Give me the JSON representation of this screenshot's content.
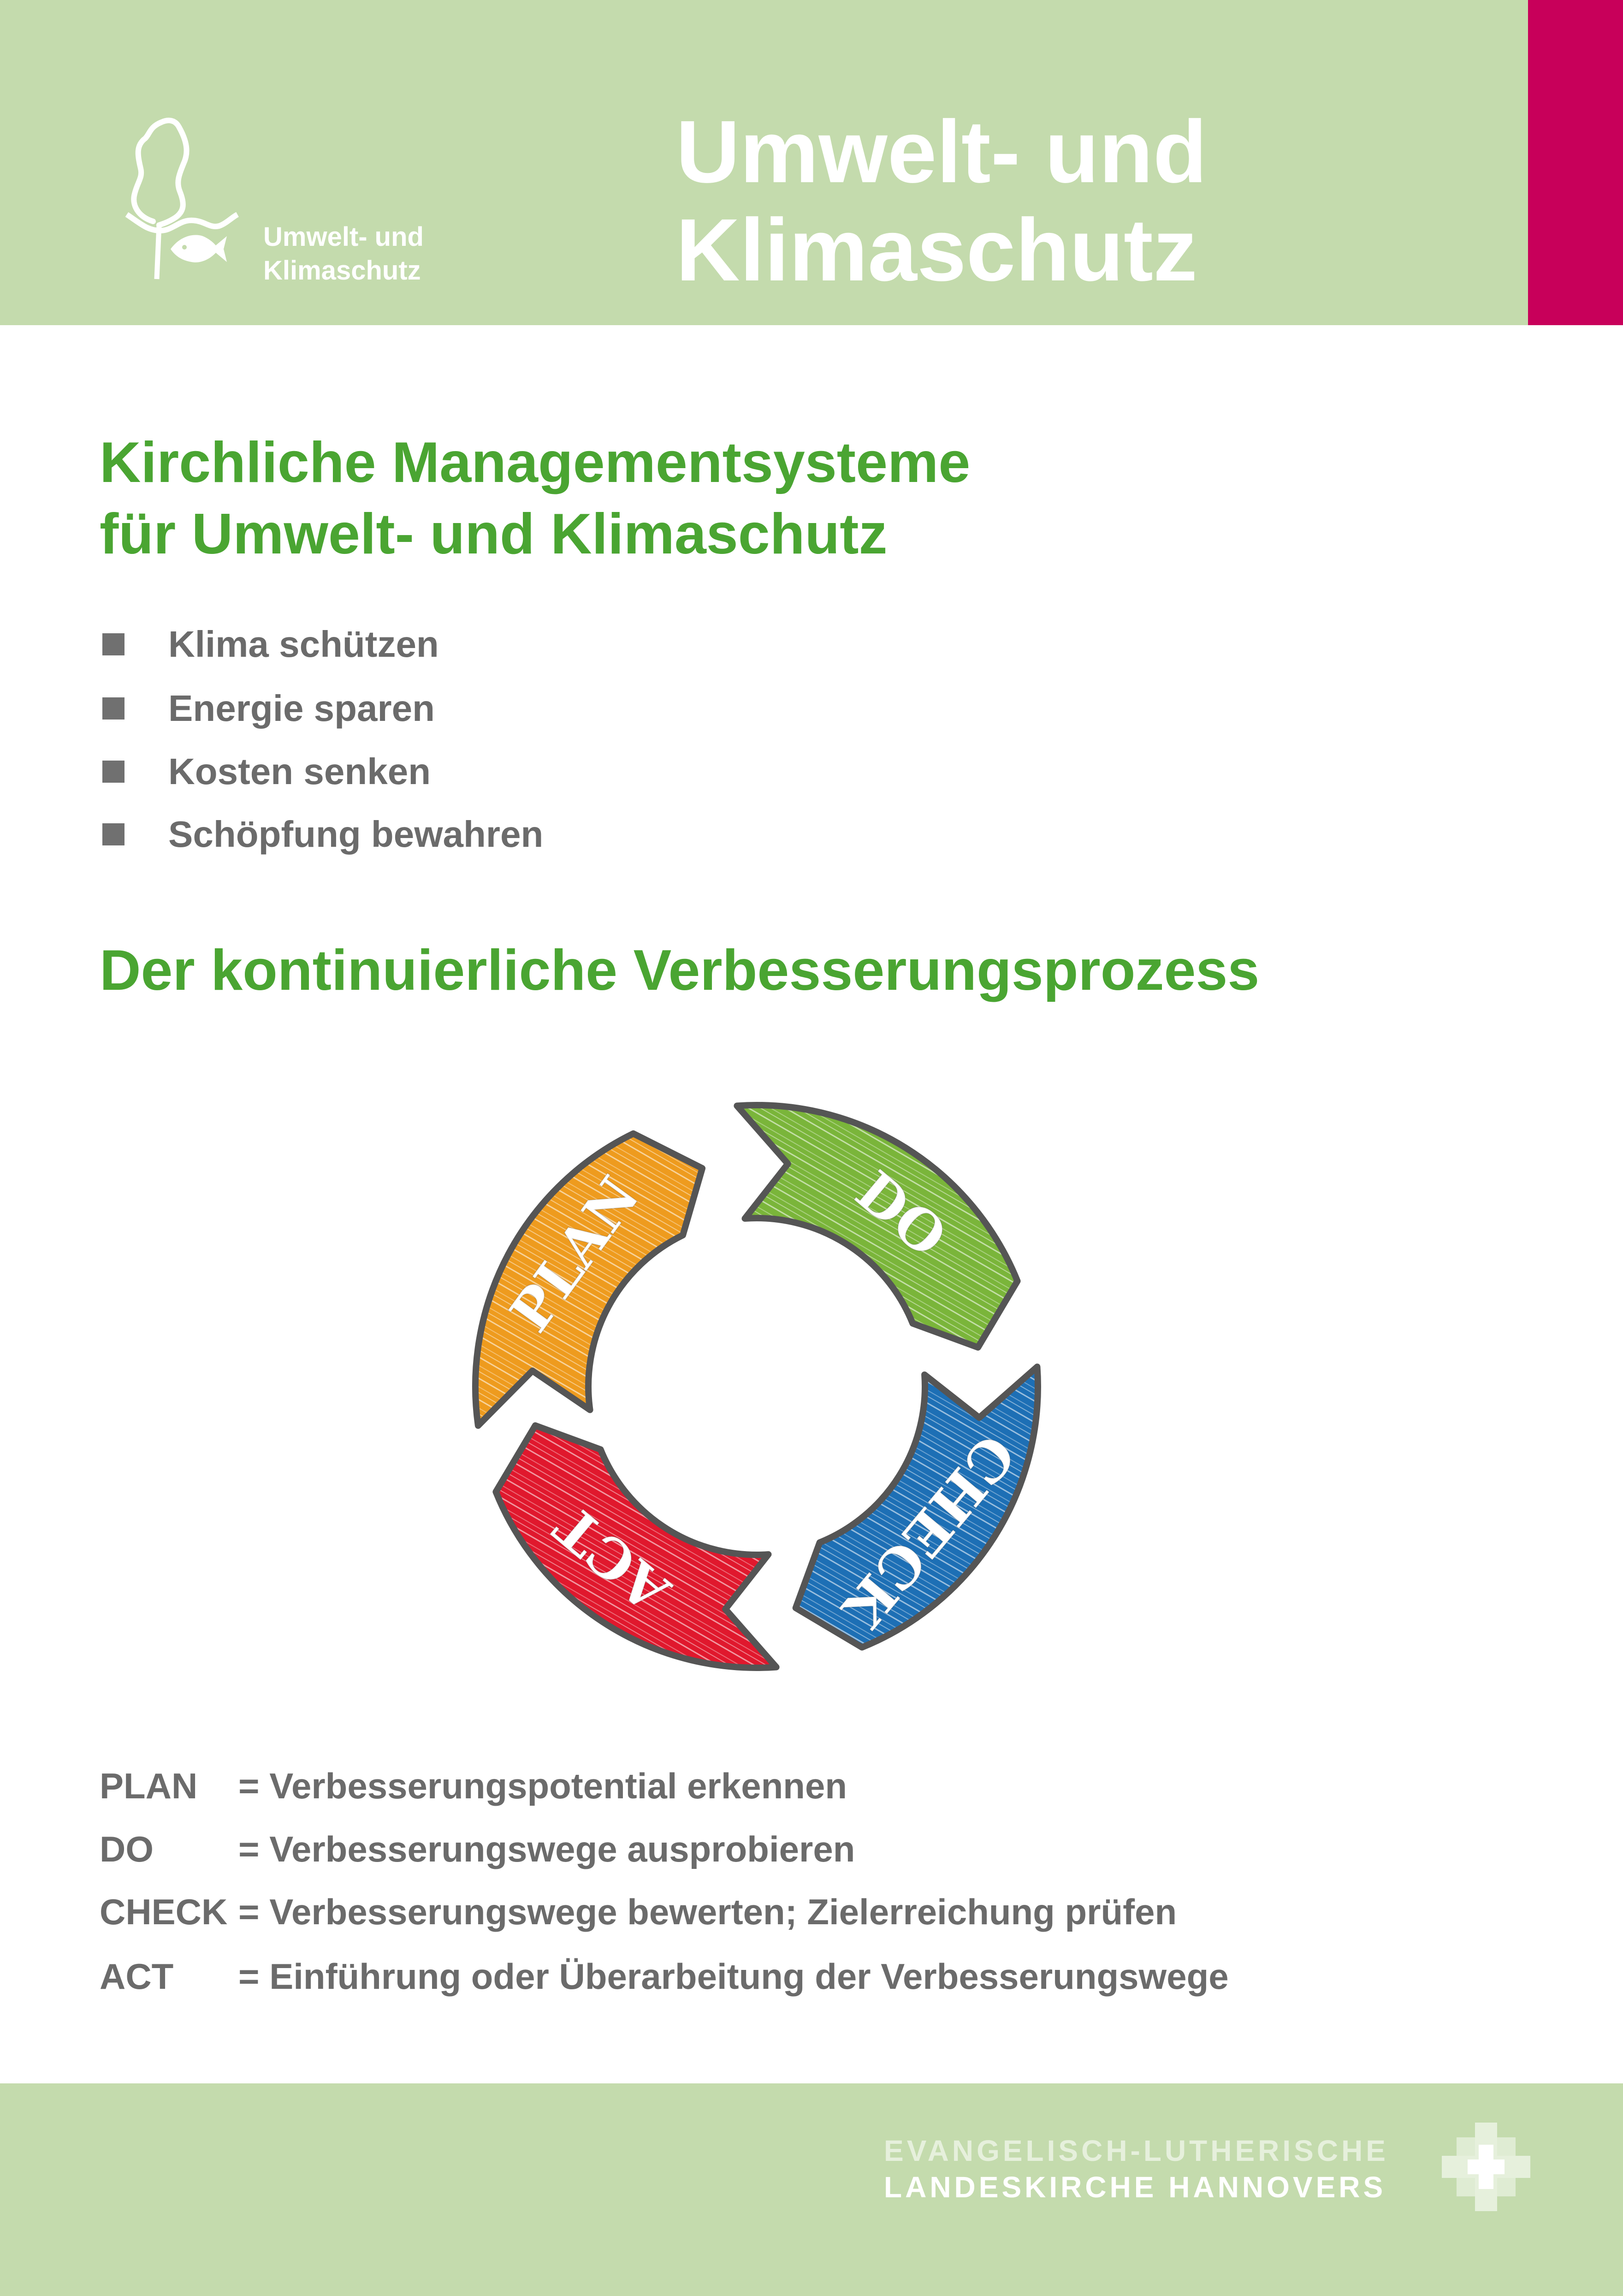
{
  "header": {
    "title_line1": "Umwelt- und",
    "title_line2": "Klimaschutz",
    "logo_text_line1": "Umwelt- und",
    "logo_text_line2": "Klimaschutz",
    "logo_icon": "tree-fish-icon"
  },
  "section1": {
    "title_line1": "Kirchliche Managementsysteme",
    "title_line2": "für Umwelt- und Klimaschutz",
    "bullets": [
      "Klima schützen",
      "Energie sparen",
      "Kosten senken",
      "Schöpfung bewahren"
    ]
  },
  "section2": {
    "title": "Der kontinuierliche Verbesserungsprozess",
    "cycle": [
      {
        "label": "PLAN",
        "color": "#ee9b1e"
      },
      {
        "label": "DO",
        "color": "#7ab53a"
      },
      {
        "label": "CHECK",
        "color": "#1d6fb5"
      },
      {
        "label": "ACT",
        "color": "#e0182d"
      }
    ],
    "legend": [
      {
        "key": "PLAN",
        "value": "= Verbesserungspotential erkennen"
      },
      {
        "key": "DO",
        "value": "= Verbesserungswege ausprobieren"
      },
      {
        "key": "CHECK",
        "value": "= Verbesserungswege bewerten; Zielerreichung prüfen"
      },
      {
        "key": "ACT",
        "value": "= Einführung oder Überarbeitung der Verbesserungswege"
      }
    ]
  },
  "footer": {
    "line1": "EVANGELISCH-LUTHERISCHE",
    "line2": "LANDESKIRCHE HANNOVERS",
    "logo_icon": "cross-icon"
  },
  "colors": {
    "header_bg": "#c4dbad",
    "accent_magenta": "#c8005a",
    "heading_green": "#4aa532",
    "text_gray": "#6b6b6b"
  }
}
